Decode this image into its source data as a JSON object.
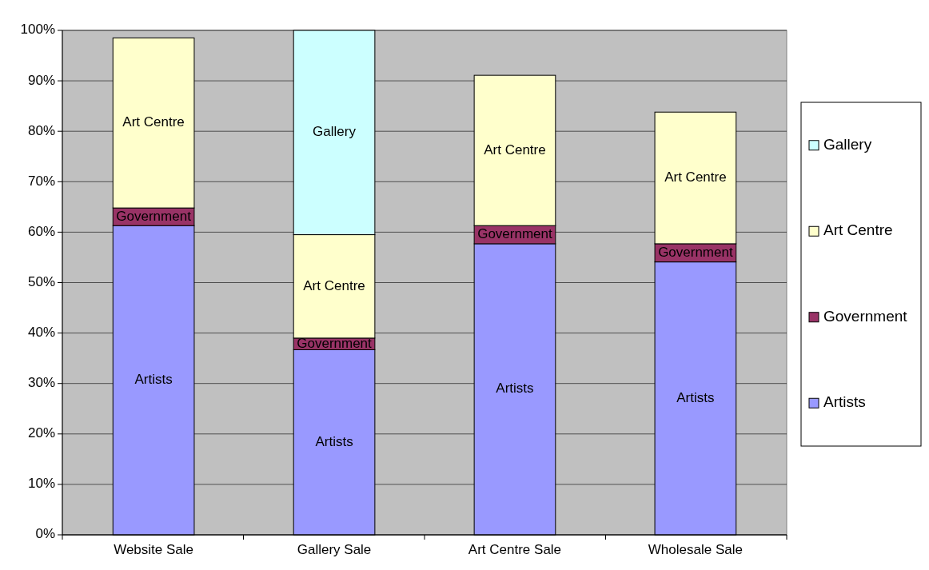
{
  "chart_data": {
    "type": "bar",
    "stacked": true,
    "categories": [
      "Website Sale",
      "Gallery Sale",
      "Art Centre Sale",
      "Wholesale Sale"
    ],
    "series": [
      {
        "name": "Artists",
        "color": "#9999ff",
        "values": [
          61.3,
          36.7,
          57.7,
          54.1
        ]
      },
      {
        "name": "Government",
        "color": "#993366",
        "values": [
          3.5,
          2.3,
          3.6,
          3.6
        ]
      },
      {
        "name": "Art Centre",
        "color": "#ffffcc",
        "values": [
          33.7,
          20.5,
          29.8,
          26.1
        ]
      },
      {
        "name": "Gallery",
        "color": "#ccffff",
        "values": [
          null,
          40.5,
          null,
          null
        ]
      }
    ],
    "ylim": [
      0,
      100
    ],
    "yticks": [
      {
        "value": 0,
        "label": "0%"
      },
      {
        "value": 10,
        "label": "10%"
      },
      {
        "value": 20,
        "label": "20%"
      },
      {
        "value": 30,
        "label": "30%"
      },
      {
        "value": 40,
        "label": "40%"
      },
      {
        "value": 50,
        "label": "50%"
      },
      {
        "value": 60,
        "label": "60%"
      },
      {
        "value": 70,
        "label": "70%"
      },
      {
        "value": 80,
        "label": "80%"
      },
      {
        "value": 90,
        "label": "90%"
      },
      {
        "value": 100,
        "label": "100%"
      }
    ],
    "grid": "y",
    "legend": "right"
  }
}
